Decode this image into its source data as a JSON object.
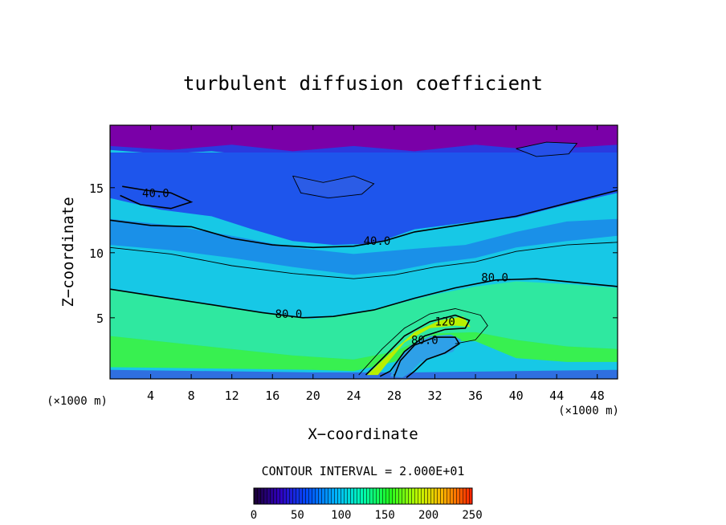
{
  "chart_data": {
    "type": "heatmap",
    "title": "turbulent diffusion coefficient",
    "xlabel": "X−coordinate",
    "ylabel": "Z−coordinate",
    "x_unit_left": "(×1000 m)",
    "x_unit_right": "(×1000 m)",
    "xlim": [
      0,
      50
    ],
    "ylim": [
      0.3,
      19.8
    ],
    "x_ticks": [
      4,
      8,
      12,
      16,
      20,
      24,
      28,
      32,
      36,
      40,
      44,
      48
    ],
    "y_ticks": [
      5,
      10,
      15
    ],
    "contour_interval_text": "CONTOUR INTERVAL = 2.000E+01",
    "colorbar": {
      "min": 0,
      "max": 250,
      "tick_values": [
        0,
        50,
        100,
        150,
        200,
        250
      ]
    },
    "contour_labels": [
      {
        "text": "40.0",
        "x": 4.5,
        "y": 14.6
      },
      {
        "text": "40.0",
        "x": 26.3,
        "y": 10.9
      },
      {
        "text": "80.0",
        "x": 37.9,
        "y": 8.1
      },
      {
        "text": "80.0",
        "x": 17.6,
        "y": 5.3
      },
      {
        "text": "120",
        "x": 33.0,
        "y": 4.7
      },
      {
        "text": "80.0",
        "x": 31.0,
        "y": 3.3
      }
    ],
    "field_layers": [
      {
        "value": 30,
        "color": "#2a3ae0",
        "boundary": [
          [
            0,
            19.8
          ],
          [
            0,
            17.9
          ],
          [
            5,
            17.6
          ],
          [
            10,
            17.8
          ],
          [
            15,
            17.4
          ],
          [
            20,
            17.7
          ],
          [
            25,
            17.2
          ],
          [
            30,
            17.6
          ],
          [
            35,
            17.3
          ],
          [
            40,
            17.6
          ],
          [
            45,
            17.2
          ],
          [
            50,
            17.7
          ],
          [
            50,
            19.8
          ]
        ]
      },
      {
        "value": 10,
        "color": "#7a00a8",
        "boundary": [
          [
            0,
            19.8
          ],
          [
            0,
            18.2
          ],
          [
            6,
            17.9
          ],
          [
            12,
            18.3
          ],
          [
            18,
            17.8
          ],
          [
            24,
            18.2
          ],
          [
            30,
            17.8
          ],
          [
            36,
            18.3
          ],
          [
            42,
            17.9
          ],
          [
            50,
            18.3
          ],
          [
            50,
            19.8
          ]
        ]
      },
      {
        "value": 50,
        "color": "#1e55ec",
        "boundary": [
          [
            0,
            17.7
          ],
          [
            0,
            14.2
          ],
          [
            5,
            13.3
          ],
          [
            10,
            12.8
          ],
          [
            14,
            11.8
          ],
          [
            18,
            10.9
          ],
          [
            22,
            10.6
          ],
          [
            26,
            10.7
          ],
          [
            30,
            11.8
          ],
          [
            35,
            12.3
          ],
          [
            40,
            12.7
          ],
          [
            45,
            13.7
          ],
          [
            50,
            14.6
          ],
          [
            50,
            17.7
          ]
        ]
      },
      {
        "value": 70,
        "color": "#1a90e8",
        "boundary": [
          [
            0,
            12.6
          ],
          [
            0,
            10.6
          ],
          [
            6,
            10.2
          ],
          [
            12,
            9.6
          ],
          [
            18,
            8.9
          ],
          [
            24,
            8.3
          ],
          [
            28,
            8.6
          ],
          [
            32,
            9.2
          ],
          [
            36,
            9.6
          ],
          [
            40,
            10.4
          ],
          [
            45,
            10.9
          ],
          [
            50,
            11.3
          ],
          [
            50,
            12.6
          ],
          [
            45,
            12.4
          ],
          [
            40,
            11.6
          ],
          [
            35,
            10.6
          ],
          [
            30,
            10.3
          ],
          [
            24,
            9.9
          ],
          [
            18,
            10.4
          ],
          [
            12,
            11.3
          ],
          [
            6,
            12.1
          ]
        ]
      },
      {
        "value": 90,
        "color": "#17c8e6",
        "boundary": [
          [
            0,
            10.6
          ],
          [
            0,
            7.2
          ],
          [
            6,
            6.6
          ],
          [
            12,
            5.8
          ],
          [
            16,
            5.4
          ],
          [
            20,
            5.0
          ],
          [
            24,
            5.4
          ],
          [
            28,
            6.2
          ],
          [
            32,
            7.0
          ],
          [
            36,
            7.6
          ],
          [
            40,
            7.9
          ],
          [
            45,
            7.7
          ],
          [
            50,
            7.3
          ],
          [
            50,
            10.8
          ],
          [
            45,
            10.6
          ],
          [
            40,
            10.1
          ],
          [
            36,
            9.3
          ],
          [
            32,
            8.9
          ],
          [
            28,
            8.3
          ],
          [
            24,
            8.0
          ],
          [
            18,
            8.6
          ],
          [
            12,
            9.3
          ],
          [
            6,
            10.0
          ]
        ]
      },
      {
        "value": 110,
        "color": "#2fe8a0",
        "boundary": [
          [
            0,
            7.2
          ],
          [
            0,
            3.6
          ],
          [
            6,
            3.1
          ],
          [
            12,
            2.6
          ],
          [
            18,
            2.1
          ],
          [
            24,
            1.8
          ],
          [
            28,
            2.4
          ],
          [
            32,
            3.8
          ],
          [
            36,
            3.9
          ],
          [
            40,
            3.3
          ],
          [
            45,
            2.8
          ],
          [
            50,
            2.6
          ],
          [
            50,
            7.3
          ],
          [
            45,
            7.6
          ],
          [
            40,
            7.8
          ],
          [
            36,
            7.4
          ],
          [
            32,
            6.8
          ],
          [
            28,
            6.0
          ],
          [
            24,
            5.3
          ],
          [
            20,
            4.9
          ],
          [
            16,
            5.3
          ],
          [
            12,
            5.7
          ],
          [
            6,
            6.5
          ]
        ]
      },
      {
        "value": 130,
        "color": "#38f050",
        "boundary": [
          [
            0,
            3.6
          ],
          [
            0,
            1.2
          ],
          [
            10,
            1.1
          ],
          [
            20,
            1.0
          ],
          [
            24,
            0.9
          ],
          [
            28,
            1.6
          ],
          [
            32,
            3.2
          ],
          [
            36,
            3.2
          ],
          [
            40,
            1.9
          ],
          [
            45,
            1.6
          ],
          [
            50,
            1.6
          ],
          [
            50,
            2.6
          ],
          [
            45,
            2.8
          ],
          [
            40,
            3.3
          ],
          [
            36,
            3.9
          ],
          [
            32,
            3.8
          ],
          [
            28,
            2.4
          ],
          [
            24,
            1.8
          ],
          [
            18,
            2.1
          ],
          [
            12,
            2.6
          ],
          [
            6,
            3.1
          ]
        ]
      },
      {
        "value": 60,
        "color": "#2f6fe0",
        "boundary": [
          [
            0,
            1.0
          ],
          [
            0,
            0.3
          ],
          [
            50,
            0.3
          ],
          [
            50,
            1.0
          ],
          [
            40,
            0.9
          ],
          [
            30,
            0.8
          ],
          [
            20,
            0.8
          ],
          [
            10,
            0.9
          ]
        ]
      },
      {
        "value": 170,
        "color": "#b8f000",
        "boundary": [
          [
            25.3,
            0.6
          ],
          [
            27.5,
            2.2
          ],
          [
            30.0,
            3.9
          ],
          [
            32.5,
            4.8
          ],
          [
            34.8,
            5.1
          ],
          [
            35.5,
            4.3
          ],
          [
            34.0,
            4.4
          ],
          [
            31.5,
            4.2
          ],
          [
            29.0,
            3.1
          ],
          [
            27.2,
            1.4
          ],
          [
            26.4,
            0.6
          ]
        ]
      },
      {
        "value": 80,
        "color": "#2ea0e8",
        "boundary": [
          [
            27.6,
            0.5
          ],
          [
            28.2,
            1.6
          ],
          [
            29.6,
            2.9
          ],
          [
            31.6,
            3.6
          ],
          [
            33.6,
            3.7
          ],
          [
            34.6,
            3.3
          ],
          [
            33.8,
            2.4
          ],
          [
            32.2,
            2.0
          ],
          [
            30.6,
            1.6
          ],
          [
            29.6,
            0.8
          ],
          [
            28.8,
            0.4
          ]
        ]
      },
      {
        "value": 45,
        "color": "#2b5ce6",
        "boundary": [
          [
            18.0,
            15.9
          ],
          [
            21.0,
            15.5
          ],
          [
            24.0,
            15.9
          ],
          [
            26.0,
            15.4
          ],
          [
            25.0,
            14.6
          ],
          [
            22.0,
            14.3
          ],
          [
            19.0,
            14.6
          ]
        ]
      },
      {
        "value": 40,
        "color": "#2650e8",
        "boundary": [
          [
            40.0,
            18.0
          ],
          [
            43.0,
            18.5
          ],
          [
            46.0,
            18.4
          ],
          [
            45.0,
            17.6
          ],
          [
            42.0,
            17.5
          ]
        ]
      }
    ],
    "contour_lines": [
      {
        "value": 40,
        "points": [
          [
            0,
            12.5
          ],
          [
            4,
            12.1
          ],
          [
            8,
            12.0
          ],
          [
            12,
            11.1
          ],
          [
            16,
            10.6
          ],
          [
            20,
            10.4
          ],
          [
            24,
            10.5
          ],
          [
            27,
            10.9
          ],
          [
            30,
            11.6
          ],
          [
            35,
            12.2
          ],
          [
            40,
            12.8
          ],
          [
            45,
            13.8
          ],
          [
            50,
            14.8
          ]
        ]
      },
      {
        "value": 40,
        "points": [
          [
            1.2,
            15.1
          ],
          [
            3.5,
            14.8
          ],
          [
            6.0,
            14.6
          ],
          [
            8.0,
            13.9
          ],
          [
            6.0,
            13.4
          ],
          [
            3.0,
            13.7
          ],
          [
            1.0,
            14.4
          ]
        ]
      },
      {
        "value": 80,
        "points": [
          [
            0,
            7.2
          ],
          [
            5,
            6.6
          ],
          [
            10,
            6.0
          ],
          [
            15,
            5.4
          ],
          [
            19,
            5.0
          ],
          [
            22,
            5.1
          ],
          [
            26,
            5.6
          ],
          [
            30,
            6.5
          ],
          [
            34,
            7.3
          ],
          [
            38,
            7.9
          ],
          [
            42,
            8.0
          ],
          [
            46,
            7.7
          ],
          [
            50,
            7.4
          ]
        ]
      },
      {
        "value": 60,
        "points": [
          [
            0,
            10.4
          ],
          [
            6,
            9.9
          ],
          [
            12,
            9.0
          ],
          [
            18,
            8.4
          ],
          [
            24,
            8.0
          ],
          [
            28,
            8.3
          ],
          [
            32,
            8.9
          ],
          [
            36,
            9.3
          ],
          [
            40,
            10.1
          ],
          [
            45,
            10.6
          ],
          [
            50,
            10.8
          ]
        ]
      },
      {
        "value": 120,
        "points": [
          [
            25.2,
            0.6
          ],
          [
            27.0,
            2.0
          ],
          [
            29.0,
            3.6
          ],
          [
            31.5,
            4.7
          ],
          [
            34.0,
            5.2
          ],
          [
            35.4,
            4.8
          ],
          [
            35.0,
            4.2
          ],
          [
            33.0,
            4.1
          ],
          [
            31.0,
            3.6
          ],
          [
            29.0,
            2.4
          ],
          [
            27.6,
            0.9
          ],
          [
            26.6,
            0.5
          ]
        ]
      },
      {
        "value": 100,
        "points": [
          [
            24.5,
            0.6
          ],
          [
            26.8,
            2.6
          ],
          [
            29.0,
            4.2
          ],
          [
            31.5,
            5.3
          ],
          [
            34.0,
            5.7
          ],
          [
            36.5,
            5.2
          ],
          [
            37.2,
            4.4
          ],
          [
            36.0,
            3.3
          ],
          [
            34.0,
            3.0
          ]
        ]
      },
      {
        "value": 80,
        "points": [
          [
            28.0,
            0.5
          ],
          [
            28.6,
            1.7
          ],
          [
            30.0,
            2.9
          ],
          [
            32.0,
            3.5
          ],
          [
            34.0,
            3.5
          ],
          [
            34.4,
            3.0
          ],
          [
            33.0,
            2.3
          ],
          [
            31.2,
            1.8
          ],
          [
            30.0,
            0.9
          ],
          [
            29.2,
            0.4
          ]
        ]
      },
      {
        "value": 20,
        "points": [
          [
            18.0,
            15.9
          ],
          [
            21.0,
            15.4
          ],
          [
            24.0,
            15.9
          ],
          [
            26.0,
            15.3
          ],
          [
            24.8,
            14.5
          ],
          [
            21.5,
            14.2
          ],
          [
            18.8,
            14.6
          ],
          [
            18.0,
            15.9
          ]
        ]
      },
      {
        "value": 20,
        "points": [
          [
            40.0,
            18.0
          ],
          [
            43.0,
            18.5
          ],
          [
            46.0,
            18.4
          ],
          [
            45.2,
            17.6
          ],
          [
            42.0,
            17.4
          ],
          [
            40.0,
            18.0
          ]
        ]
      }
    ]
  }
}
